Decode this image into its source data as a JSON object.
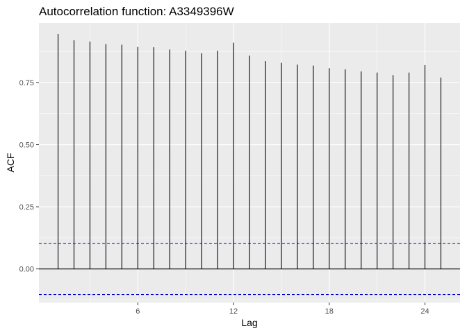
{
  "chart_data": {
    "type": "bar",
    "title": "Autocorrelation function:  A3349396W",
    "xlabel": "Lag",
    "ylabel": "ACF",
    "x": [
      1,
      2,
      3,
      4,
      5,
      6,
      7,
      8,
      9,
      10,
      11,
      12,
      13,
      14,
      15,
      16,
      17,
      18,
      19,
      20,
      21,
      22,
      23,
      24,
      25
    ],
    "values": [
      0.945,
      0.92,
      0.915,
      0.905,
      0.902,
      0.893,
      0.892,
      0.883,
      0.878,
      0.868,
      0.878,
      0.91,
      0.858,
      0.836,
      0.829,
      0.822,
      0.818,
      0.808,
      0.803,
      0.795,
      0.79,
      0.78,
      0.79,
      0.82,
      0.77
    ],
    "xticks": [
      6,
      12,
      18,
      24
    ],
    "yticks": [
      0.0,
      0.25,
      0.5,
      0.75
    ],
    "ytick_labels": [
      "0.00",
      "0.25",
      "0.50",
      "0.75"
    ],
    "xlim": [
      -0.2,
      26.2
    ],
    "ylim": [
      -0.135,
      0.99
    ],
    "confidence_bound": 0.103,
    "grid": true,
    "colors": {
      "panel": "#ebebeb",
      "grid": "#ffffff",
      "bars": "#000000",
      "bound": "#0000cc"
    }
  }
}
